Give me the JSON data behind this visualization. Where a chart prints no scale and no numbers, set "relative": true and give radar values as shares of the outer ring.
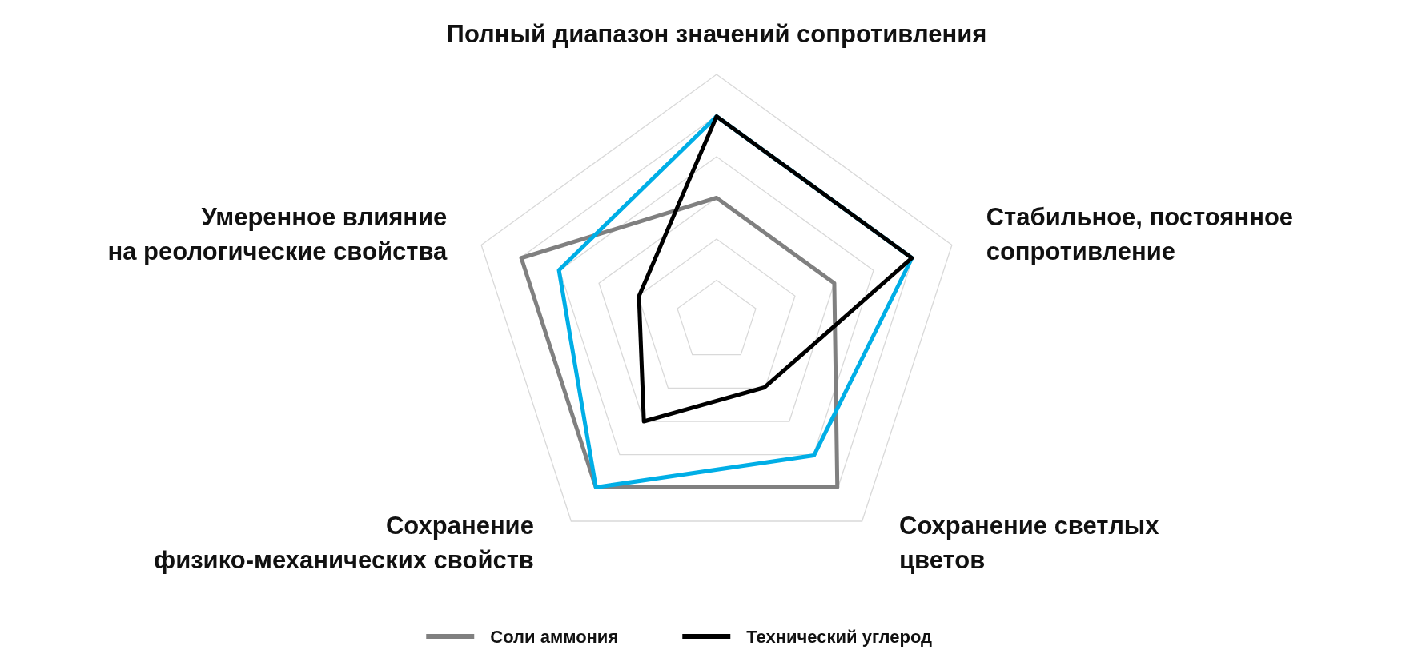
{
  "chart_data": {
    "type": "radar",
    "relative": true,
    "grid": true,
    "legend": "bottom",
    "categories": [
      "Полный диапазон значений сопротивления",
      "Стабильное, постоянное\nсопротивление",
      "Сохранение светлых\nцветов",
      "Сохранение\nфизико-механических свойств",
      "Умеренное влияние\nна реологические свойства"
    ],
    "series": [
      {
        "name": "Соли аммония",
        "color": "#808080",
        "values": [
          0.5,
          0.5,
          0.83,
          0.83,
          0.83
        ]
      },
      {
        "color": "#00aee6",
        "values": [
          0.83,
          0.83,
          0.67,
          0.83,
          0.67
        ]
      },
      {
        "name": "Технический углерод",
        "color": "#000000",
        "values": [
          0.83,
          0.83,
          0.33,
          0.5,
          0.33
        ]
      }
    ]
  }
}
